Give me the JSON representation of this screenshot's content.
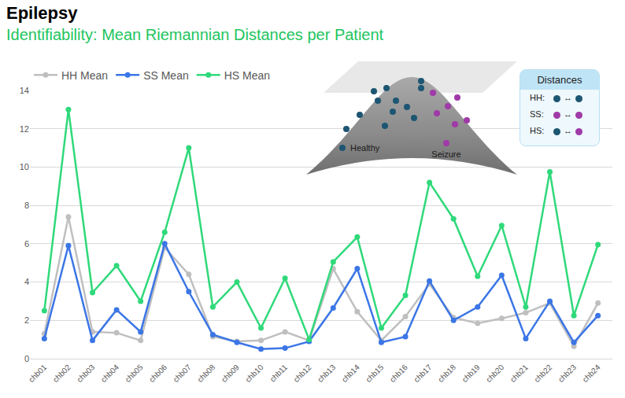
{
  "chart_data": {
    "type": "line",
    "title": "Epilepsy",
    "subtitle": "Identifiability: Mean Riemannian Distances per Patient",
    "categories": [
      "chb01",
      "chb02",
      "chb03",
      "chb04",
      "chb05",
      "chb06",
      "chb07",
      "chb08",
      "chb09",
      "chb10",
      "chb11",
      "chb12",
      "chb13",
      "chb14",
      "chb15",
      "chb16",
      "chb17",
      "chb18",
      "chb19",
      "chb20",
      "chb21",
      "chb22",
      "chb23",
      "chb24"
    ],
    "series": [
      {
        "name": "HH Mean",
        "color": "#bfbfbf",
        "marker": "circle",
        "values": [
          1.3,
          7.4,
          1.4,
          1.35,
          0.95,
          5.8,
          4.4,
          1.15,
          0.9,
          0.95,
          1.4,
          0.95,
          4.7,
          2.45,
          0.95,
          2.2,
          3.9,
          2.15,
          1.85,
          2.1,
          2.4,
          2.9,
          0.65,
          2.9
        ]
      },
      {
        "name": "SS Mean",
        "color": "#3b76e6",
        "marker": "circle",
        "values": [
          1.05,
          5.9,
          0.95,
          2.55,
          1.4,
          6.0,
          3.5,
          1.25,
          0.85,
          0.5,
          0.55,
          0.9,
          2.65,
          4.7,
          0.85,
          1.15,
          4.05,
          2.0,
          2.7,
          4.35,
          1.05,
          3.0,
          0.85,
          2.25
        ]
      },
      {
        "name": "HS Mean",
        "color": "#2fd97a",
        "marker": "circle",
        "values": [
          2.5,
          13.0,
          3.45,
          4.85,
          3.0,
          6.6,
          11.0,
          2.7,
          4.0,
          1.6,
          4.2,
          1.0,
          5.05,
          6.35,
          1.6,
          3.3,
          9.2,
          7.3,
          4.3,
          6.95,
          2.7,
          9.75,
          2.25,
          5.95
        ]
      }
    ],
    "ylim": [
      0,
      14
    ],
    "yticks": [
      0,
      2,
      4,
      6,
      8,
      10,
      12,
      14
    ],
    "grid": true,
    "legend": "top-left"
  },
  "inset": {
    "labels": {
      "healthy": "Healthy",
      "seizure": "Seizure"
    },
    "key": {
      "title": "Distances",
      "rows": [
        {
          "label": "HH:",
          "symbol": "↔",
          "left": "healthy",
          "right": "healthy"
        },
        {
          "label": "SS:",
          "symbol": "↔",
          "left": "seizure",
          "right": "seizure"
        },
        {
          "label": "HS:",
          "symbol": "↔",
          "left": "healthy",
          "right": "seizure"
        }
      ]
    }
  }
}
